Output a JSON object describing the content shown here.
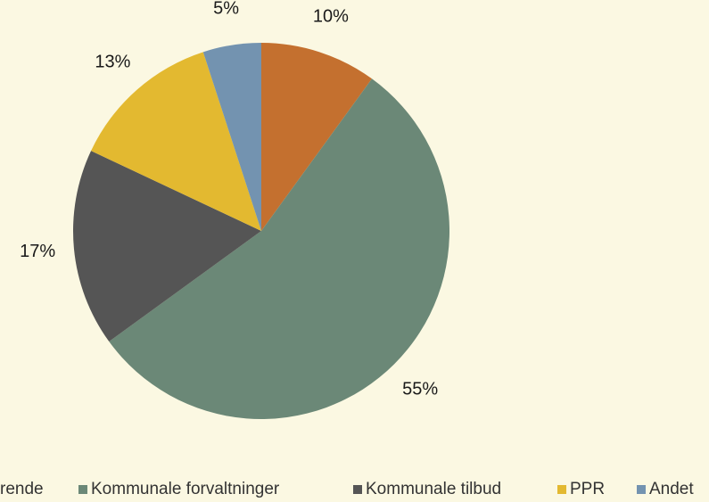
{
  "chart_data": {
    "type": "pie",
    "categories": [
      "rende",
      "Kommunale forvaltninger",
      "Kommunale tilbud",
      "PPR",
      "Andet"
    ],
    "values": [
      10,
      55,
      17,
      13,
      5
    ],
    "value_labels": [
      "10%",
      "55%",
      "17%",
      "13%",
      "5%"
    ],
    "colors": [
      "#c4702f",
      "#6b8877",
      "#555555",
      "#e3b930",
      "#7393b0"
    ]
  }
}
